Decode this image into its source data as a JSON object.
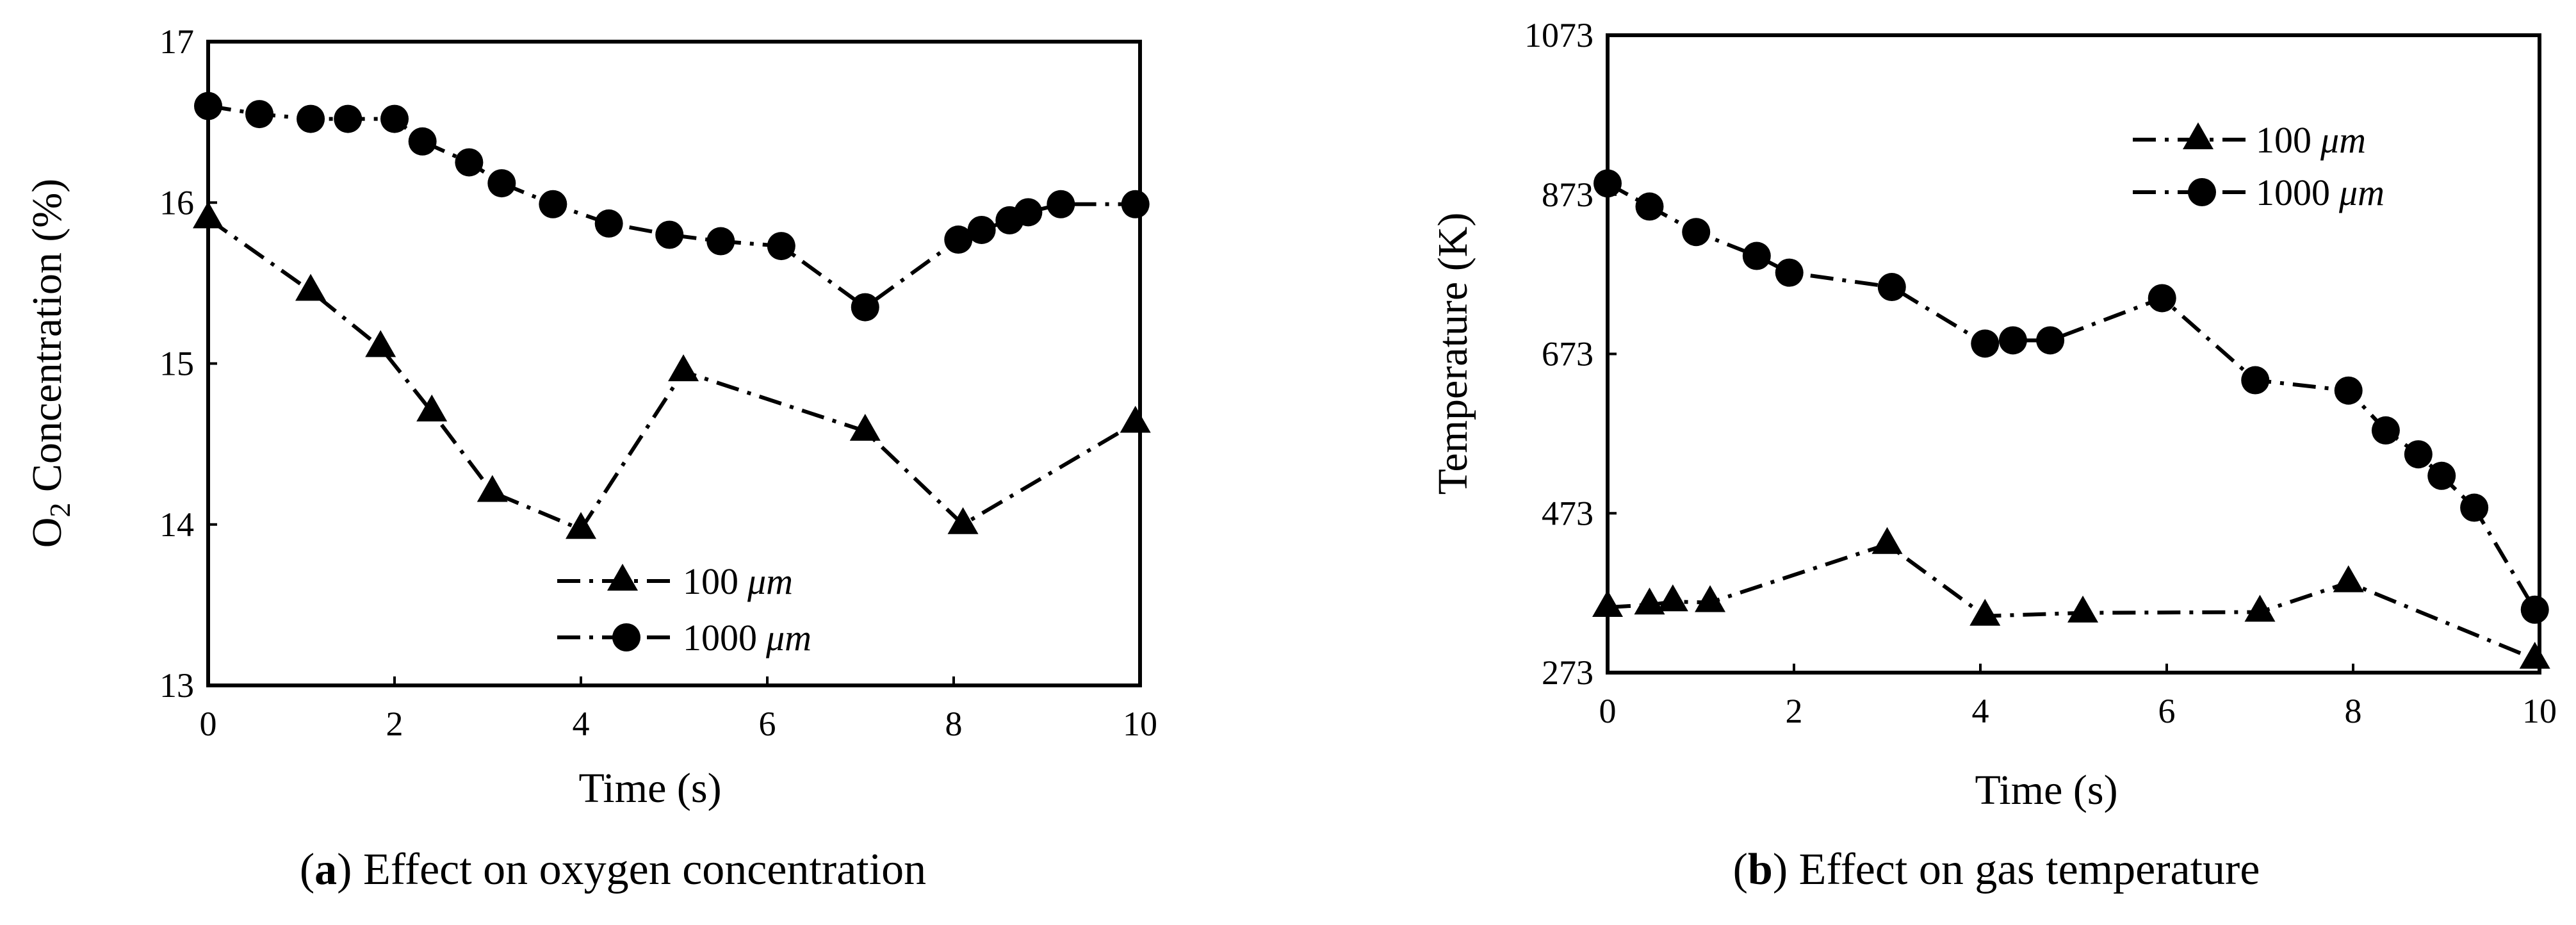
{
  "chart_data": [
    {
      "type": "line",
      "caption_letter": "a",
      "caption_text": "Effect on oxygen concentration",
      "xlabel": "Time (s)",
      "ylabel_prefix": "O",
      "ylabel_subscript": "2",
      "ylabel_suffix": " Concentration (%)",
      "xlim": [
        0,
        10
      ],
      "ylim": [
        13,
        17
      ],
      "xticks": [
        "0",
        "2",
        "4",
        "6",
        "8",
        "10"
      ],
      "yticks": [
        "13",
        "14",
        "15",
        "16",
        "17"
      ],
      "grid": false,
      "legend_position": "bottom-center",
      "series": [
        {
          "name": "100 μm",
          "legend_number": "100",
          "legend_unit": "μm",
          "marker": "triangle",
          "x": [
            0,
            1.1,
            1.85,
            2.4,
            3.05,
            4.0,
            5.1,
            7.05,
            8.1,
            9.95
          ],
          "y": [
            15.9,
            15.45,
            15.1,
            14.7,
            14.2,
            13.97,
            14.95,
            14.58,
            14.0,
            14.63
          ]
        },
        {
          "name": "1000 μm",
          "legend_number": "1000",
          "legend_unit": "μm",
          "marker": "circle",
          "x": [
            0,
            0.55,
            1.1,
            1.5,
            2.0,
            2.3,
            2.8,
            3.15,
            3.7,
            4.3,
            4.95,
            5.5,
            6.15,
            7.05,
            8.05,
            8.3,
            8.6,
            8.8,
            9.15,
            9.95
          ],
          "y": [
            16.6,
            16.55,
            16.52,
            16.52,
            16.52,
            16.38,
            16.25,
            16.12,
            15.99,
            15.87,
            15.8,
            15.76,
            15.73,
            15.35,
            15.77,
            15.83,
            15.89,
            15.94,
            15.99,
            15.99
          ]
        }
      ]
    },
    {
      "type": "line",
      "caption_letter": "b",
      "caption_text": "Effect on gas temperature",
      "xlabel": "Time (s)",
      "ylabel": "Temperature (K)",
      "xlim": [
        0,
        10
      ],
      "ylim": [
        273,
        1073
      ],
      "xticks": [
        "0",
        "2",
        "4",
        "6",
        "8",
        "10"
      ],
      "yticks": [
        "273",
        "473",
        "673",
        "873",
        "1073"
      ],
      "grid": false,
      "legend_position": "top-right",
      "series": [
        {
          "name": "100 μm",
          "legend_number": "100",
          "legend_unit": "μm",
          "marker": "triangle",
          "x": [
            0,
            0.45,
            0.7,
            1.1,
            3.0,
            4.05,
            5.1,
            7.0,
            7.95,
            9.95
          ],
          "y": [
            355,
            358,
            362,
            361,
            434,
            344,
            348,
            349,
            386,
            290
          ]
        },
        {
          "name": "1000 μm",
          "legend_number": "1000",
          "legend_unit": "μm",
          "marker": "circle",
          "x": [
            0,
            0.45,
            0.95,
            1.6,
            1.95,
            3.05,
            4.05,
            4.35,
            4.75,
            5.95,
            6.95,
            7.95,
            8.35,
            8.7,
            8.95,
            9.3,
            9.95
          ],
          "y": [
            887,
            858,
            826,
            796,
            775,
            757,
            686,
            690,
            690,
            743,
            640,
            627,
            577,
            547,
            520,
            480,
            352
          ]
        }
      ]
    }
  ]
}
